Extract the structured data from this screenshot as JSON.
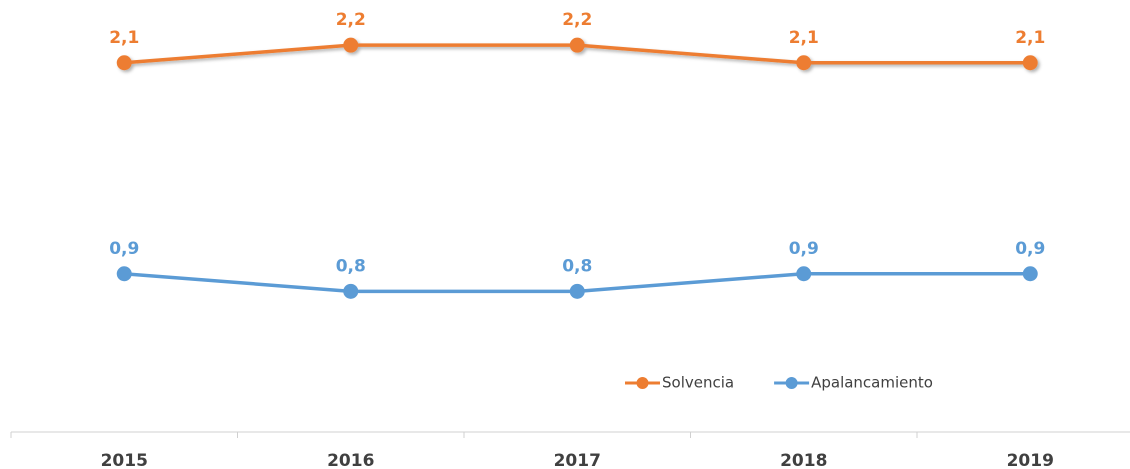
{
  "chart_data": {
    "type": "line",
    "categories": [
      "2015",
      "2016",
      "2017",
      "2018",
      "2019"
    ],
    "series": [
      {
        "name": "Solvencia",
        "color": "#ED7D31",
        "values": [
          2.1,
          2.2,
          2.2,
          2.1,
          2.1
        ],
        "value_labels": [
          "2,1",
          "2,2",
          "2,2",
          "2,1",
          "2,1"
        ]
      },
      {
        "name": "Apalancamiento",
        "color": "#5B9BD5",
        "values": [
          0.9,
          0.8,
          0.8,
          0.9,
          0.9
        ],
        "value_labels": [
          "0,9",
          "0,8",
          "0,8",
          "0,9",
          "0,9"
        ]
      }
    ],
    "ylim": [
      0,
      2.4
    ],
    "grid": false,
    "legend": "lower right"
  }
}
